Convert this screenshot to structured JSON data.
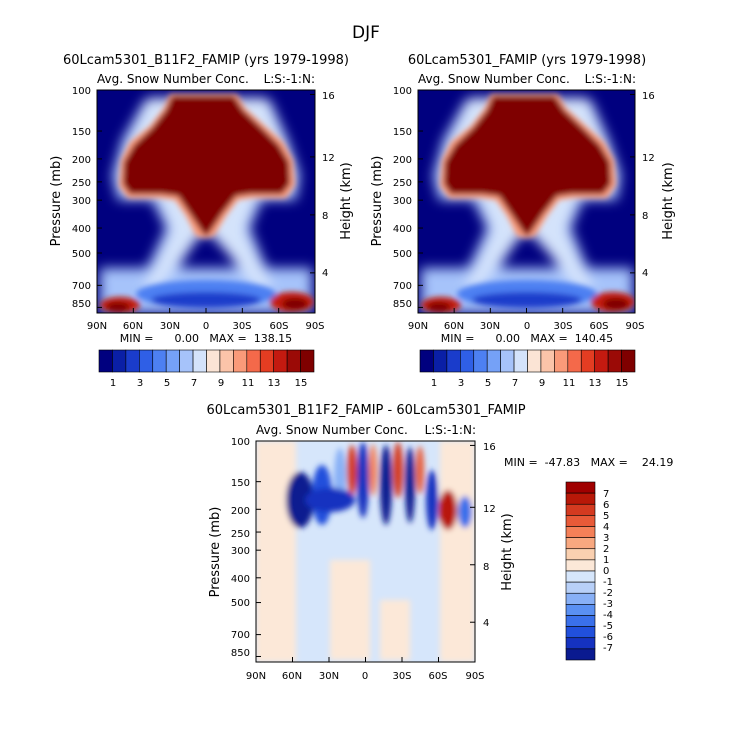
{
  "figure_title": "DJF",
  "palette_full": [
    "#00007f",
    "#0a1fa6",
    "#1a3ccb",
    "#2f5fe6",
    "#4d80f2",
    "#75a1f7",
    "#a6c3fa",
    "#d4e3fb",
    "#fbe4d5",
    "#fbc4a9",
    "#fa9a79",
    "#f4694a",
    "#e43d22",
    "#c41a10",
    "#9b0a06",
    "#7f0000"
  ],
  "palette_diff": [
    "#0a1a90",
    "#1532c0",
    "#2150dc",
    "#3a70ea",
    "#5a90f2",
    "#88b0f6",
    "#b8d0f8",
    "#d6e6fb",
    "#fce8d8",
    "#fad0b0",
    "#f8a880",
    "#f48058",
    "#e85a38",
    "#d43a20",
    "#b81808",
    "#a00000"
  ],
  "chart_data": [
    {
      "type": "heatmap",
      "panel": "top-left",
      "title": "60Lcam5301_B11F2_FAMIP (yrs 1979-1998)",
      "subtitle": "Avg. Snow Number Conc.",
      "level_tag": "L:S:-1:N:",
      "xlabel": "",
      "ylabel": "Pressure (mb)",
      "ylabel_right": "Height (km)",
      "x_ticks": [
        "90N",
        "60N",
        "30N",
        "0",
        "30S",
        "60S",
        "90S"
      ],
      "y_ticks": [
        "100",
        "150",
        "200",
        "250",
        "300",
        "400",
        "500",
        "700",
        "850"
      ],
      "y_ticks_right": [
        "16",
        "12",
        "8",
        "4"
      ],
      "minmax_text": "MIN =      0.00   MAX =  138.15",
      "min": 0.0,
      "max": 138.15,
      "colorbar_labels": [
        "1",
        "3",
        "5",
        "7",
        "9",
        "11",
        "13",
        "15"
      ]
    },
    {
      "type": "heatmap",
      "panel": "top-right",
      "title": "60Lcam5301_FAMIP (yrs 1979-1998)",
      "subtitle": "Avg. Snow Number Conc.",
      "level_tag": "L:S:-1:N:",
      "xlabel": "",
      "ylabel": "Pressure (mb)",
      "ylabel_right": "Height (km)",
      "x_ticks": [
        "90N",
        "60N",
        "30N",
        "0",
        "30S",
        "60S",
        "90S"
      ],
      "y_ticks": [
        "100",
        "150",
        "200",
        "250",
        "300",
        "400",
        "500",
        "700",
        "850"
      ],
      "y_ticks_right": [
        "16",
        "12",
        "8",
        "4"
      ],
      "minmax_text": "MIN =      0.00   MAX =  140.45",
      "min": 0.0,
      "max": 140.45,
      "colorbar_labels": [
        "1",
        "3",
        "5",
        "7",
        "9",
        "11",
        "13",
        "15"
      ]
    },
    {
      "type": "heatmap",
      "panel": "bottom-difference",
      "title": "60Lcam5301_B11F2_FAMIP - 60Lcam5301_FAMIP",
      "subtitle": "Avg. Snow Number Conc.",
      "level_tag": "L:S:-1:N:",
      "xlabel": "",
      "ylabel": "Pressure (mb)",
      "ylabel_right": "Height (km)",
      "x_ticks": [
        "90N",
        "60N",
        "30N",
        "0",
        "30S",
        "60S",
        "90S"
      ],
      "y_ticks": [
        "100",
        "150",
        "200",
        "250",
        "300",
        "400",
        "500",
        "700",
        "850"
      ],
      "y_ticks_right": [
        "16",
        "12",
        "8",
        "4"
      ],
      "minmax_text": "MIN =  -47.83   MAX =    24.19",
      "min": -47.83,
      "max": 24.19,
      "colorbar_labels": [
        "7",
        "6",
        "5",
        "4",
        "3",
        "2",
        "1",
        "0",
        "-1",
        "-2",
        "-3",
        "-4",
        "-5",
        "-6",
        "-7"
      ]
    }
  ]
}
